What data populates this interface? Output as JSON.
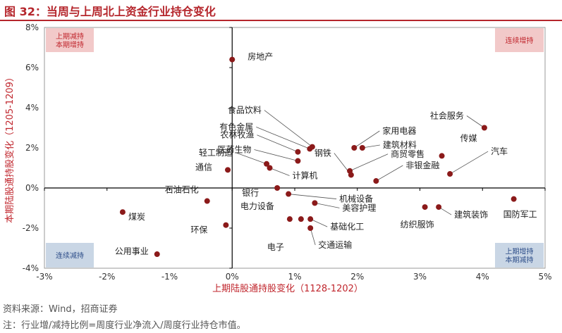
{
  "figure_title": "图 32：当周与上周北上资金行业持仓变化",
  "source_line": "资料来源：Wind，招商证券",
  "note_line": "注：行业增/减持比例=周度行业净流入/周度行业持仓市值。",
  "quadrant_labels": {
    "top_left": [
      "上期减持",
      "本期增持"
    ],
    "top_right": [
      "连续增持"
    ],
    "bottom_left": [
      "连续减持"
    ],
    "bottom_right": [
      "上期增持",
      "本期减持"
    ]
  },
  "colors": {
    "title": "#b5262c",
    "point": "#8b1a1a",
    "axis_label": "#c0262d",
    "box_red": "#f2c9c9",
    "box_blue": "#c9d6e5",
    "box_red_text": "#c0262d",
    "box_blue_text": "#2f4f8a"
  },
  "chart_data": {
    "type": "scatter",
    "xlabel": "上期陆股通持股变化（1128-1202）",
    "ylabel": "本期陆股通持股变化（1205-1209）",
    "xlim": [
      -3,
      5
    ],
    "ylim": [
      -4,
      8
    ],
    "x_ticks": [
      "-3%",
      "-2%",
      "-1%",
      "0%",
      "1%",
      "2%",
      "3%",
      "4%",
      "5%"
    ],
    "y_ticks": [
      "8%",
      "6%",
      "4%",
      "2%",
      "0%",
      "-2%",
      "-4%"
    ],
    "x_unit": "%",
    "y_unit": "%",
    "points": [
      {
        "label": "房地产",
        "x": 0.0,
        "y": 6.4
      },
      {
        "label": "食品饮料",
        "x": 1.28,
        "y": 2.05
      },
      {
        "label": "有色金属",
        "x": 1.24,
        "y": 1.95
      },
      {
        "label": "农林牧渔",
        "x": 1.05,
        "y": 1.8
      },
      {
        "label": "医药生物",
        "x": 1.05,
        "y": 1.35
      },
      {
        "label": "轻工制造",
        "x": 0.55,
        "y": 1.2
      },
      {
        "label": "计算机",
        "x": 0.6,
        "y": 1.0
      },
      {
        "label": "通信",
        "x": -0.07,
        "y": 0.9
      },
      {
        "label": "钢铁",
        "x": 1.9,
        "y": 0.65
      },
      {
        "label": "家用电器",
        "x": 1.95,
        "y": 2.0
      },
      {
        "label": "建筑材料",
        "x": 2.08,
        "y": 2.0
      },
      {
        "label": "商贸零售",
        "x": 1.88,
        "y": 0.85
      },
      {
        "label": "非银金融",
        "x": 2.3,
        "y": 0.35
      },
      {
        "label": "社会服务",
        "x": 4.03,
        "y": 3.0
      },
      {
        "label": "传媒",
        "x": 3.35,
        "y": 1.6
      },
      {
        "label": "汽车",
        "x": 3.48,
        "y": 0.7
      },
      {
        "label": "石油石化",
        "x": -0.4,
        "y": -0.65
      },
      {
        "label": "银行",
        "x": 0.72,
        "y": 0.0
      },
      {
        "label": "机械设备",
        "x": 0.9,
        "y": -0.3
      },
      {
        "label": "美容护理",
        "x": 1.32,
        "y": -0.75
      },
      {
        "label": "电力设备",
        "x": 0.92,
        "y": -1.55
      },
      {
        "label": "基础化工",
        "x": 1.25,
        "y": -1.55
      },
      {
        "label": "电子",
        "x": 1.1,
        "y": -1.55
      },
      {
        "label": "交通运输",
        "x": 1.25,
        "y": -2.0
      },
      {
        "label": "环保",
        "x": -0.1,
        "y": -1.85
      },
      {
        "label": "煤炭",
        "x": -1.75,
        "y": -1.2
      },
      {
        "label": "公用事业",
        "x": -1.2,
        "y": -3.3
      },
      {
        "label": "纺织服饰",
        "x": 3.08,
        "y": -0.95
      },
      {
        "label": "建筑装饰",
        "x": 3.3,
        "y": -0.95
      },
      {
        "label": "国防军工",
        "x": 4.5,
        "y": -0.55
      }
    ]
  }
}
